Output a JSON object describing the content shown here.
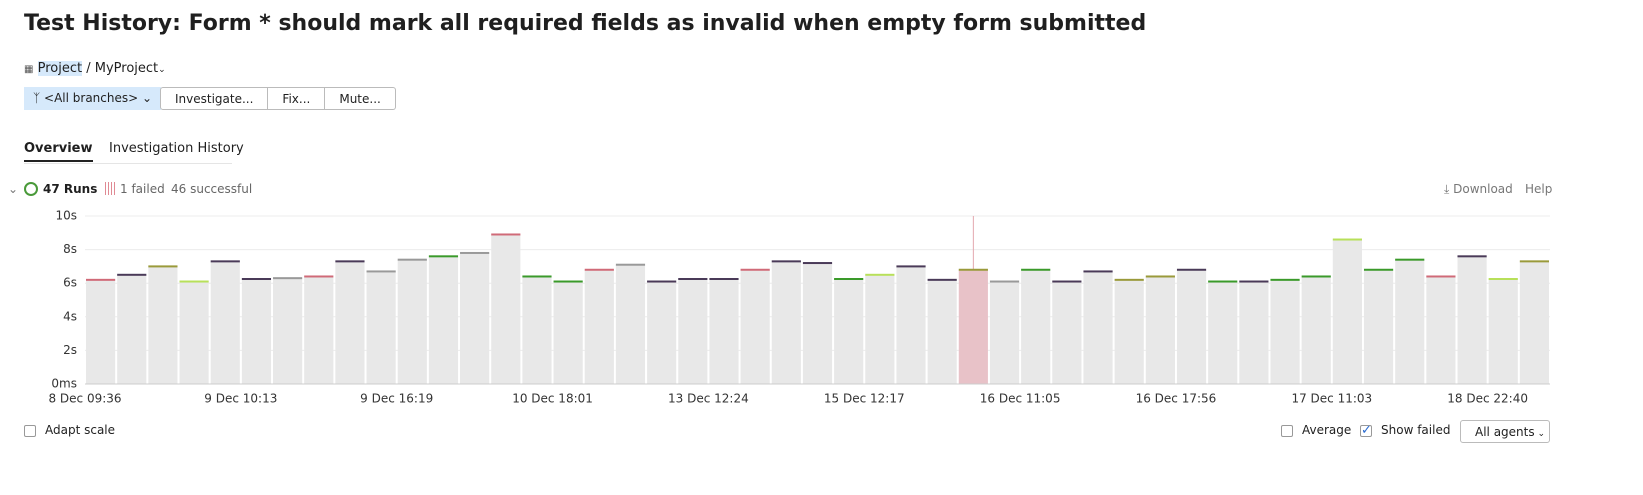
{
  "header": {
    "title": "Test History: Form * should mark all required fields as invalid when empty form submitted",
    "breadcrumb": [
      "Project",
      "/",
      "MyProject"
    ]
  },
  "toolbar": {
    "branch": "<All branches>",
    "buttons": [
      "Investigate...",
      "Fix...",
      "Mute..."
    ]
  },
  "tabs": [
    "Overview",
    "Investigation History"
  ],
  "summary": {
    "runs": "47 Runs",
    "failed": "1 failed",
    "successful": "46 successful",
    "download": "Download",
    "help": "Help"
  },
  "chart_data": {
    "type": "bar",
    "categories": [
      "8 Dec 09:36",
      null,
      null,
      null,
      null,
      "9 Dec 10:13",
      null,
      null,
      null,
      null,
      "9 Dec 16:19",
      null,
      null,
      null,
      null,
      "10 Dec 18:01",
      null,
      null,
      null,
      null,
      "13 Dec 12:24",
      null,
      null,
      null,
      null,
      "15 Dec 12:17",
      null,
      null,
      null,
      null,
      "16 Dec 11:05",
      null,
      null,
      null,
      null,
      "16 Dec 17:56",
      null,
      null,
      null,
      null,
      "17 Dec 11:03",
      null,
      null,
      null,
      null,
      "18 Dec 22:40",
      null
    ],
    "values": [
      6.2,
      6.5,
      7.0,
      6.1,
      7.3,
      6.25,
      6.3,
      6.4,
      7.3,
      6.7,
      7.4,
      7.6,
      7.8,
      8.9,
      6.4,
      6.1,
      6.8,
      7.1,
      6.1,
      6.25,
      6.25,
      6.8,
      7.3,
      7.2,
      6.25,
      6.5,
      7.0,
      6.2,
      6.8,
      6.1,
      6.8,
      6.1,
      6.7,
      6.2,
      6.4,
      6.8,
      6.1,
      6.1,
      6.2,
      6.4,
      8.6,
      6.8,
      7.4,
      6.4,
      7.6,
      6.25,
      7.3
    ],
    "colors": [
      "#d06a78",
      "#4a3a58",
      "#9a9a3a",
      "#b8e05a",
      "#4a3a58",
      "#4a3a58",
      "#999999",
      "#d06a78",
      "#4a3a58",
      "#999999",
      "#999999",
      "#3a9a2a",
      "#999999",
      "#d06a78",
      "#3a9a2a",
      "#3a9a2a",
      "#d06a78",
      "#999999",
      "#4a3a58",
      "#4a3a58",
      "#4a3a58",
      "#d06a78",
      "#4a3a58",
      "#4a3a58",
      "#3a9a2a",
      "#b8e05a",
      "#4a3a58",
      "#4a3a58",
      "#9a9a3a",
      "#999999",
      "#3a9a2a",
      "#4a3a58",
      "#4a3a58",
      "#9a9a3a",
      "#9a9a3a",
      "#4a3a58",
      "#3a9a2a",
      "#4a3a58",
      "#3a9a2a",
      "#3a9a2a",
      "#b8e05a",
      "#3a9a2a",
      "#3a9a2a",
      "#d06a78",
      "#4a3a58",
      "#b8e05a",
      "#9a9a3a"
    ],
    "bar_fills": [
      "#e8e8e8",
      "#e8e8e8",
      "#e8e8e8",
      "#e8e8e8",
      "#e8e8e8",
      "#e8e8e8",
      "#e8e8e8",
      "#e8e8e8",
      "#e8e8e8",
      "#e8e8e8",
      "#e8e8e8",
      "#e8e8e8",
      "#e8e8e8",
      "#e8e8e8",
      "#e8e8e8",
      "#e8e8e8",
      "#e8e8e8",
      "#e8e8e8",
      "#e8e8e8",
      "#e8e8e8",
      "#e8e8e8",
      "#e8e8e8",
      "#e8e8e8",
      "#e8e8e8",
      "#e8e8e8",
      "#e8e8e8",
      "#e8e8e8",
      "#e8e8e8",
      "#e8c2c8",
      "#e8e8e8",
      "#e8e8e8",
      "#e8e8e8",
      "#e8e8e8",
      "#e8e8e8",
      "#e8e8e8",
      "#e8e8e8",
      "#e8e8e8",
      "#e8e8e8",
      "#e8e8e8",
      "#e8e8e8",
      "#e8e8e8",
      "#e8e8e8",
      "#e8e8e8",
      "#e8e8e8",
      "#e8e8e8",
      "#e8e8e8",
      "#e8e8e8"
    ],
    "ylim": [
      0,
      10
    ],
    "yticks": [
      {
        "value": 0,
        "label": "0ms"
      },
      {
        "value": 2,
        "label": "2s"
      },
      {
        "value": 4,
        "label": "4s"
      },
      {
        "value": 6,
        "label": "6s"
      },
      {
        "value": 8,
        "label": "8s"
      },
      {
        "value": 10,
        "label": "10s"
      }
    ],
    "grid": true
  },
  "footer": {
    "adapt_scale": "Adapt scale",
    "average": "Average",
    "show_failed": "Show failed",
    "agents": "All agents"
  }
}
